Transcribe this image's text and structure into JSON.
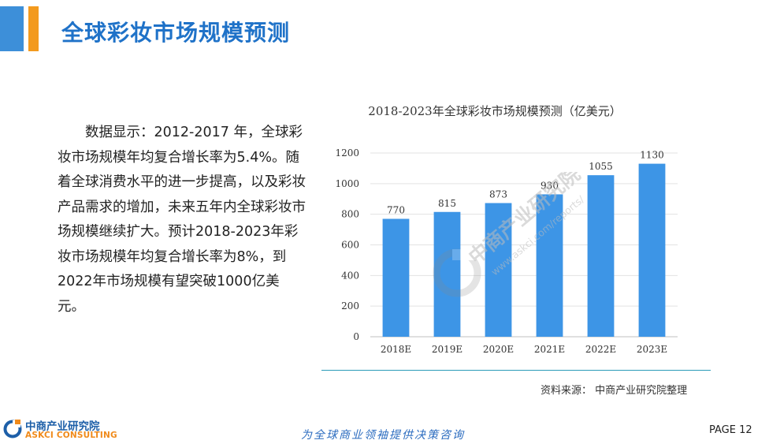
{
  "header": {
    "title": "全球彩妆市场规模预测"
  },
  "body": {
    "paragraph": "数据显示：2012-2017 年，全球彩妆市场规模年均复合增长率为5.4%。随着全球消费水平的进一步提高，以及彩妆产品需求的增加，未来五年内全球彩妆市场规模继续扩大。预计2018-2023年彩妆市场规模年均复合增长率为8%，到2022年市场规模有望突破1000亿美元。"
  },
  "chart_data": {
    "type": "bar",
    "title": "2018-2023年全球彩妆市场规模预测（亿美元）",
    "categories": [
      "2018E",
      "2019E",
      "2020E",
      "2021E",
      "2022E",
      "2023E"
    ],
    "values": [
      770,
      815,
      873,
      930,
      1055,
      1130
    ],
    "ylim": [
      0,
      1200
    ],
    "yticks": [
      0,
      200,
      400,
      600,
      800,
      1000,
      1200
    ],
    "grid": true,
    "bar_color": "#3d95e6",
    "data_labels": true
  },
  "source": "资料来源：  中商产业研究院整理",
  "watermark": {
    "text1": "中商产业研究院",
    "text2": "www.askci.com/reports/"
  },
  "footer": {
    "logo_zh": "中商产业研究院",
    "logo_en": "ASKCI CONSULTING",
    "slogan": "为全球商业领袖提供决策咨询",
    "page": "PAGE  12"
  },
  "colors": {
    "accent_blue": "#3d8fd9",
    "accent_orange": "#f39a1e",
    "title_blue": "#1f72c8"
  }
}
